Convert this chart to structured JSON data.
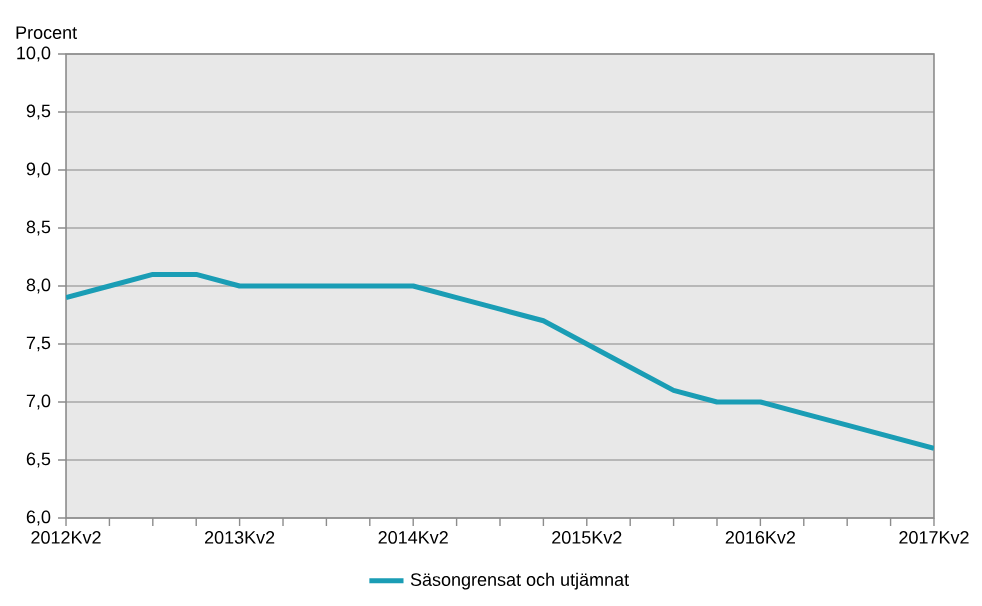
{
  "chart_data": {
    "type": "line",
    "ylabel": "Procent",
    "categories": [
      "2012Kv2",
      null,
      null,
      null,
      "2013Kv2",
      null,
      null,
      null,
      "2014Kv2",
      null,
      null,
      null,
      "2015Kv2",
      null,
      null,
      null,
      "2016Kv2",
      null,
      null,
      null,
      "2017Kv2"
    ],
    "series": [
      {
        "name": "Säsongrensat och utjämnat",
        "color": "#1a9db5",
        "values": [
          7.9,
          8.0,
          8.1,
          8.1,
          8.0,
          8.0,
          8.0,
          8.0,
          8.0,
          7.9,
          7.8,
          7.7,
          7.5,
          7.3,
          7.1,
          7.0,
          7.0,
          6.9,
          6.8,
          6.7,
          6.6
        ]
      }
    ],
    "ylim": [
      6,
      10
    ],
    "yticks": [
      {
        "value": 6,
        "label": "6,0"
      },
      {
        "value": 6.5,
        "label": "6,5"
      },
      {
        "value": 7,
        "label": "7,0"
      },
      {
        "value": 7.5,
        "label": "7,5"
      },
      {
        "value": 8,
        "label": "8,0"
      },
      {
        "value": 8.5,
        "label": "8,5"
      },
      {
        "value": 9,
        "label": "9,0"
      },
      {
        "value": 9.5,
        "label": "9,5"
      },
      {
        "value": 10,
        "label": "10,0"
      }
    ],
    "grid": "y",
    "legend": "bottom",
    "marker": "none",
    "line_style": "solid"
  }
}
